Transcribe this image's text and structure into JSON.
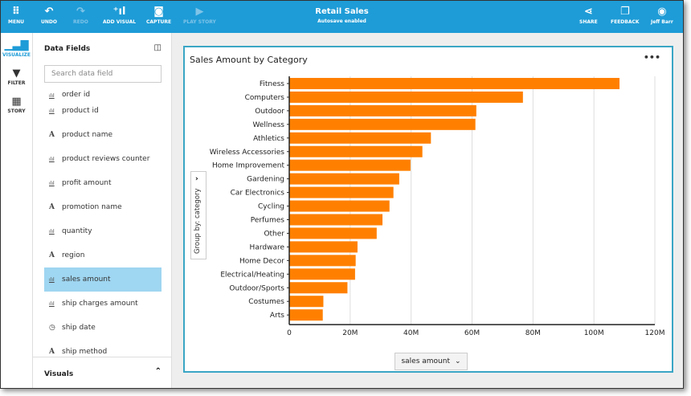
{
  "toolbar": {
    "menu": "MENU",
    "undo": "UNDO",
    "redo": "REDO",
    "add_visual": "ADD VISUAL",
    "capture": "CAPTURE",
    "play_story": "PLAY STORY",
    "share": "SHARE",
    "feedback": "FEEDBACK",
    "user": "Jeff Barr"
  },
  "header": {
    "title": "Retail Sales",
    "subtitle": "Autosave enabled"
  },
  "rail": [
    {
      "label": "VISUALIZE",
      "icon": "bar-chart-icon"
    },
    {
      "label": "FILTER",
      "icon": "filter-icon"
    },
    {
      "label": "STORY",
      "icon": "film-icon"
    }
  ],
  "panel": {
    "title": "Data Fields",
    "search_placeholder": "Search data field",
    "fields": [
      {
        "label": "order id",
        "type": "measure"
      },
      {
        "label": "product id",
        "type": "measure"
      },
      {
        "label": "product name",
        "type": "text"
      },
      {
        "label": "product reviews counter",
        "type": "measure"
      },
      {
        "label": "profit amount",
        "type": "measure"
      },
      {
        "label": "promotion name",
        "type": "text"
      },
      {
        "label": "quantity",
        "type": "measure"
      },
      {
        "label": "region",
        "type": "text"
      },
      {
        "label": "sales amount",
        "type": "measure",
        "selected": true
      },
      {
        "label": "ship charges amount",
        "type": "measure"
      },
      {
        "label": "ship date",
        "type": "date"
      },
      {
        "label": "ship method",
        "type": "text"
      }
    ],
    "visuals_label": "Visuals"
  },
  "visual": {
    "more": "•••",
    "group_by": "Group by: category",
    "x_field": "sales amount"
  },
  "colors": {
    "accent": "#1e9cd7",
    "bar": "#ff8000",
    "selected": "#9fd6f1"
  },
  "chart_data": {
    "type": "bar",
    "orientation": "horizontal",
    "title": "Sales Amount by Category",
    "categories": [
      "Fitness",
      "Computers",
      "Outdoor",
      "Wellness",
      "Athletics",
      "Wireless Accessories",
      "Home Improvement",
      "Gardening",
      "Car Electronics",
      "Cycling",
      "Perfumes",
      "Other",
      "Hardware",
      "Home Decor",
      "Electrical/Heating",
      "Outdoor/Sports",
      "Costumes",
      "Arts"
    ],
    "values": [
      108.4,
      76.7,
      61.4,
      61.1,
      46.5,
      43.7,
      39.8,
      36.1,
      34.2,
      32.9,
      30.6,
      28.7,
      22.4,
      21.8,
      21.6,
      19.1,
      11.2,
      11.0
    ],
    "unit": "M",
    "xlim": [
      0,
      120
    ],
    "xticks": [
      "0",
      "20M",
      "40M",
      "60M",
      "80M",
      "100M",
      "120M"
    ],
    "grid": true,
    "color": "#ff8000"
  }
}
